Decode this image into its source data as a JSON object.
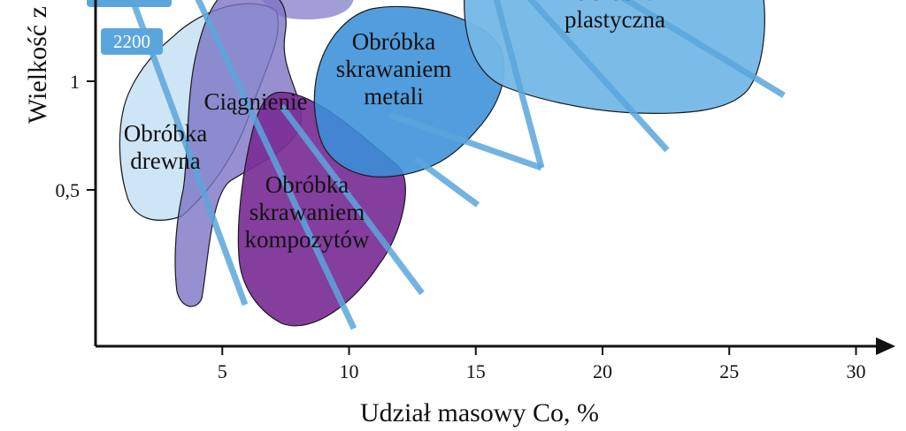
{
  "chart_data": {
    "type": "area",
    "xlabel": "Udział masowy Co, %",
    "ylabel": "Wielkość z",
    "x_ticks": [
      "5",
      "10",
      "15",
      "20",
      "25",
      "30"
    ],
    "x_tick_values": [
      5,
      10,
      15,
      20,
      25,
      30
    ],
    "y_ticks": [
      "0,5",
      "1"
    ],
    "y_tick_values": [
      0.5,
      1
    ],
    "xlim": [
      0,
      31
    ],
    "hardness_badge": "2200",
    "regions": [
      {
        "label": "Obróbka drewna",
        "lines": [
          "Obróbka",
          "drewna"
        ],
        "color": "#c5e0f4"
      },
      {
        "label": "Ciągnienie",
        "lines": [
          "Ciągnienie"
        ],
        "color": "#7c74c5"
      },
      {
        "label": "Obróbka skrawaniem kompozytów",
        "lines": [
          "Obróbka",
          "skrawaniem",
          "kompozytów"
        ],
        "color": "#7a2e96"
      },
      {
        "label": "Obróbka skrawaniem metali",
        "lines": [
          "Obróbka",
          "skrawaniem",
          "metali"
        ],
        "color": "#3a8fd8"
      },
      {
        "label": "Obróbka plastyczna",
        "lines": [
          "Obróbka",
          "plastyczna"
        ],
        "color": "#74b7e6"
      }
    ],
    "line_color": "#5aa6dc",
    "grid": false
  }
}
